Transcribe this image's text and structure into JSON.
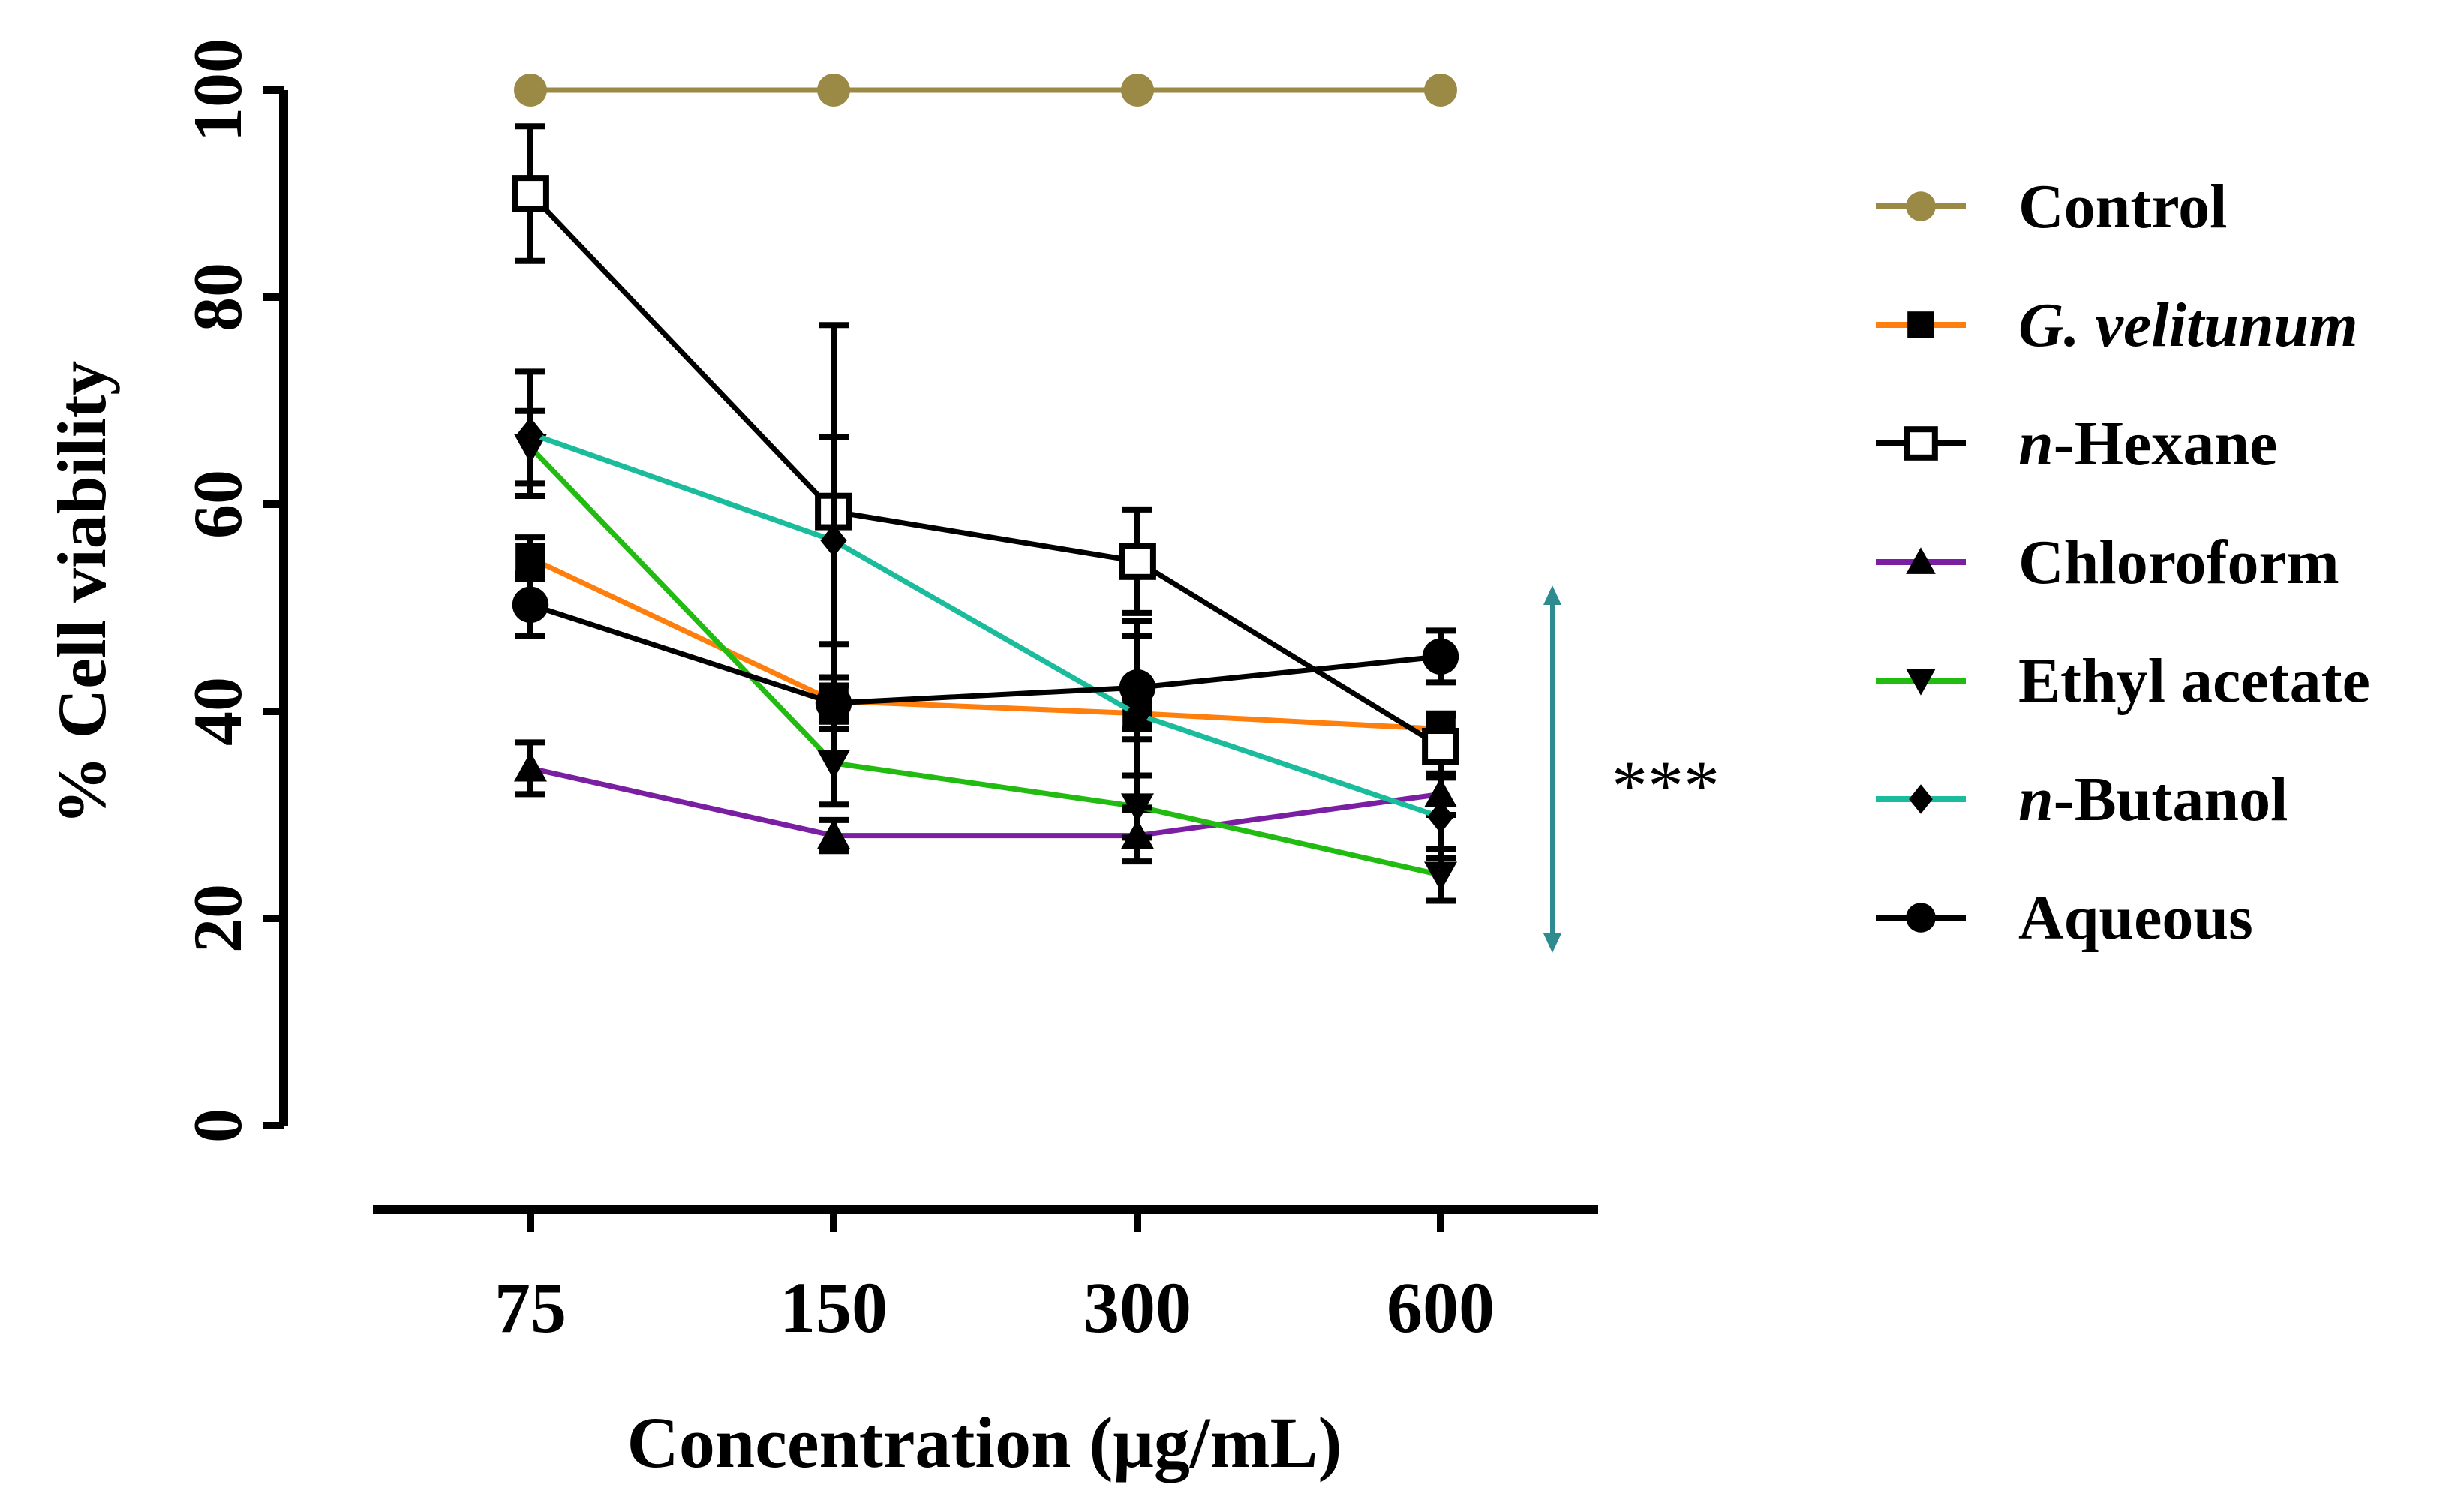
{
  "chart_data": {
    "type": "line",
    "title": "",
    "xlabel": "Concentration (μg/mL)",
    "ylabel": "% Cell viability",
    "x_categories": [
      "75",
      "150",
      "300",
      "600"
    ],
    "ylim": [
      0,
      100
    ],
    "y_ticks": [
      "0",
      "20",
      "40",
      "60",
      "80",
      "100"
    ],
    "grid": false,
    "legend_position": "right",
    "annotation": "***",
    "annotation_color": "#2e8b8f",
    "series": [
      {
        "name": "Control",
        "name_prefix": "",
        "name_italic_prefix": "",
        "name_rest": "Control",
        "italic_full": false,
        "color": "#9a8a45",
        "marker": "circle-filled",
        "values": [
          100,
          100,
          100,
          100
        ],
        "errors": [
          0,
          0,
          0,
          0
        ]
      },
      {
        "name": "G. velitunum",
        "name_italic_prefix": "",
        "name_rest": "G. velitunum",
        "italic_full": true,
        "color": "#ff7f0e",
        "marker": "square-filled",
        "values": [
          54.8,
          41,
          39.8,
          38.3
        ],
        "errors": [
          2,
          1.5,
          1.5,
          1.5
        ]
      },
      {
        "name": "n-Hexane",
        "name_italic_prefix": "n",
        "name_rest": "-Hexane",
        "italic_full": false,
        "color": "#000000",
        "marker": "square-open",
        "values": [
          90,
          59.3,
          54.5,
          36.6
        ],
        "errors": [
          6.5,
          18,
          5,
          3
        ]
      },
      {
        "name": "Chloroform",
        "name_italic_prefix": "",
        "name_rest": "Chloroform",
        "italic_full": false,
        "color": "#7b1fa2",
        "marker": "triangle-up",
        "values": [
          34.5,
          28,
          28,
          32
        ],
        "errors": [
          2.5,
          1.5,
          2.5,
          2
        ]
      },
      {
        "name": "Ethyl acetate",
        "name_italic_prefix": "",
        "name_rest": "Ethyl acetate",
        "italic_full": false,
        "color": "#22bb11",
        "marker": "triangle-down",
        "values": [
          65.5,
          35,
          30.8,
          24.2
        ],
        "errors": [
          3.5,
          4,
          3,
          2.5
        ]
      },
      {
        "name": "n-Butanol",
        "name_italic_prefix": "n",
        "name_rest": "-Butanol",
        "italic_full": false,
        "color": "#1abc9c",
        "marker": "diamond",
        "values": [
          66.8,
          56.5,
          39.7,
          29.8
        ],
        "errors": [
          6,
          10,
          9,
          4
        ]
      },
      {
        "name": "Aqueous",
        "name_italic_prefix": "",
        "name_rest": "Aqueous",
        "italic_full": false,
        "color": "#000000",
        "marker": "circle-filled",
        "values": [
          50.3,
          40.8,
          42.3,
          45.3
        ],
        "errors": [
          3,
          2.5,
          5,
          2.5
        ]
      }
    ]
  }
}
